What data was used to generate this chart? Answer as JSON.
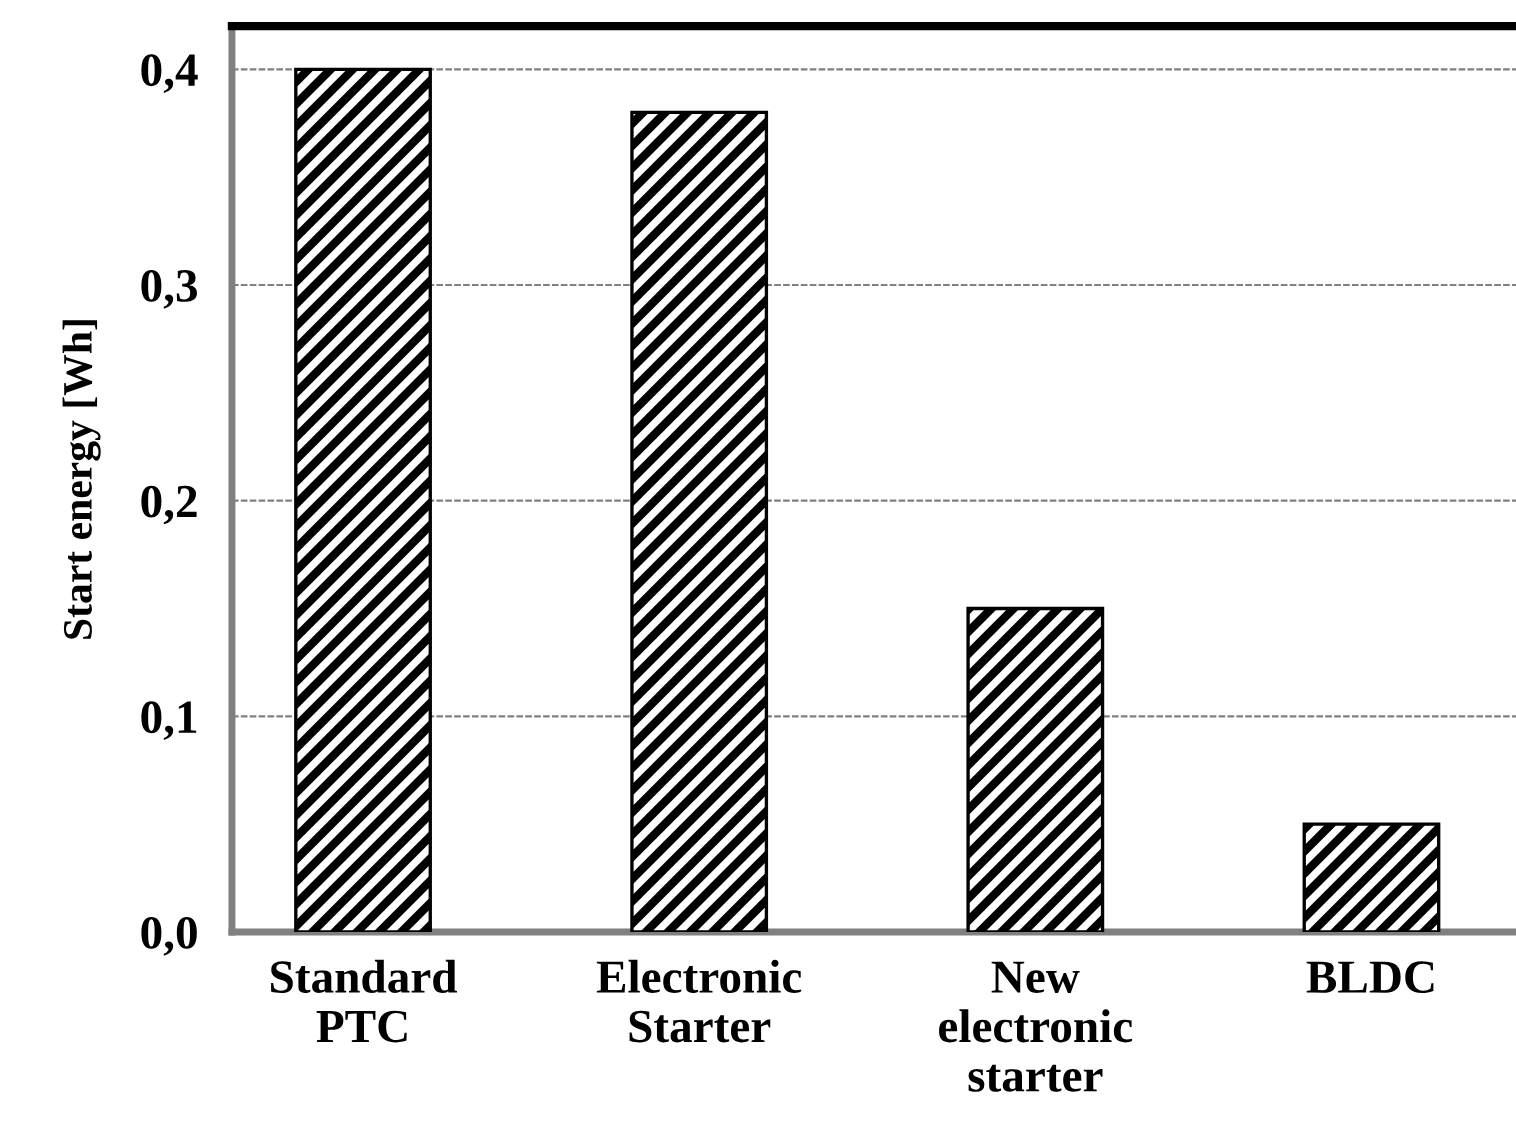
{
  "chart_data": {
    "type": "bar",
    "ylabel": "Start energy [Wh]",
    "categories": [
      "Standard\nPTC",
      "Electronic\nStarter",
      "New\nelectronic\nstarter",
      "BLDC"
    ],
    "values": [
      0.4,
      0.38,
      0.15,
      0.05
    ],
    "color": "#000000",
    "ylim": [
      0,
      0.42
    ],
    "yticks": [
      {
        "value": 0,
        "label": "0,0"
      },
      {
        "value": 0.1,
        "label": "0,1"
      },
      {
        "value": 0.2,
        "label": "0,2"
      },
      {
        "value": 0.3,
        "label": "0,3"
      },
      {
        "value": 0.4,
        "label": "0,4"
      }
    ],
    "grid": "y"
  }
}
